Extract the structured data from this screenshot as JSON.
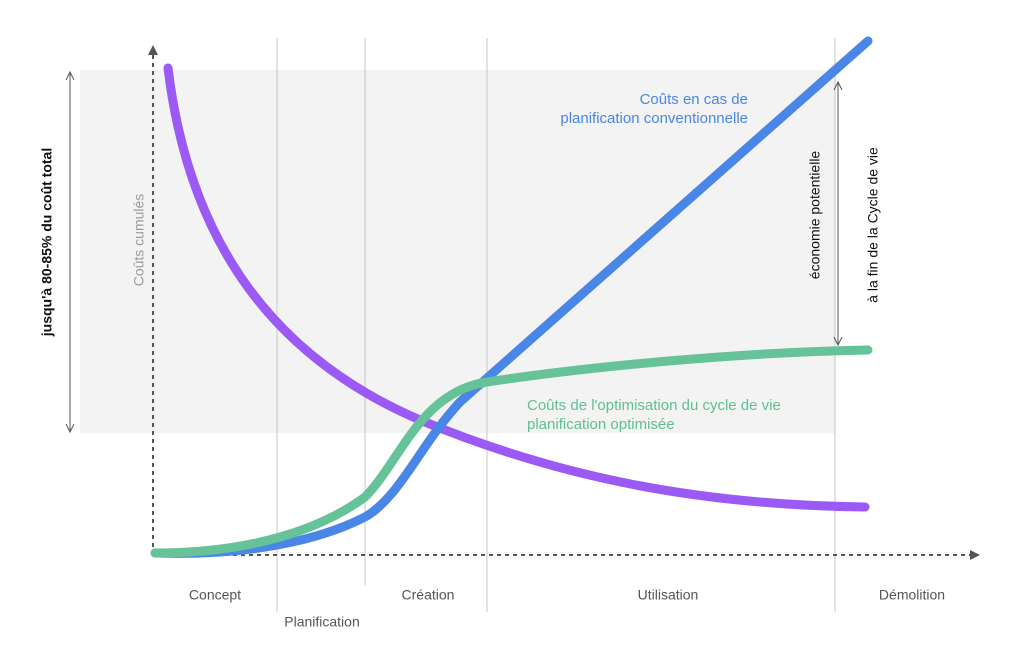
{
  "y_axis_label": "Coûts cumulés",
  "left_bracket_label": "jusqu'à 80-85% du coût total",
  "right_bracket_labels": [
    "économie potentielle",
    "à la fin de la Cycle de vie"
  ],
  "conventional_label": [
    "Coûts en cas de",
    "planification conventionnelle"
  ],
  "optimized_label": [
    "Coûts de l'optimisation du cycle de vie",
    "planification optimisée"
  ],
  "phases": [
    "Concept",
    "Planification",
    "Création",
    "Utilisation",
    "Démolition"
  ]
}
